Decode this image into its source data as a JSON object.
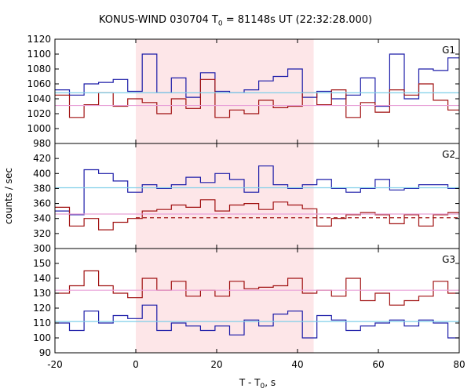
{
  "chart_data": {
    "type": "line",
    "title_main": "KONUS-WIND 030704 T",
    "title_sub": "0",
    "title_rest": " = 81148s UT (22:32:28.000)",
    "xlabel_main": "T - T",
    "xlabel_sub": "0",
    "xlabel_rest": ", s",
    "ylabel": "counts / sec",
    "xlim": [
      -20,
      80
    ],
    "xticks": [
      "-20",
      "0",
      "20",
      "40",
      "60",
      "80"
    ],
    "highlight_range": [
      0,
      44
    ],
    "colors": {
      "blue": "#1c1ca8",
      "red": "#a01010",
      "cyan": "#7fcfe8",
      "pink": "#e8a0d8",
      "shade": "#fde6e8"
    },
    "bins": [
      -20,
      -16.4,
      -12.8,
      -9.2,
      -5.6,
      -2,
      1.6,
      5.2,
      8.8,
      12.4,
      16,
      19.6,
      23.2,
      26.8,
      30.4,
      34,
      37.6,
      41.2,
      44.8,
      48.4,
      52,
      55.6,
      59.2,
      62.8,
      66.4,
      70,
      73.6,
      77.2,
      80
    ],
    "panels": [
      {
        "label": "G1",
        "ylim": [
          980,
          1120
        ],
        "yticks": [
          "980",
          "1000",
          "1020",
          "1040",
          "1060",
          "1080",
          "1100",
          "1120"
        ],
        "series": [
          {
            "color": "blue",
            "values": [
              1052,
              1045,
              1060,
              1062,
              1066,
              1050,
              1100,
              1048,
              1068,
              1042,
              1075,
              1050,
              1048,
              1052,
              1064,
              1070,
              1080,
              1042,
              1050,
              1040,
              1045,
              1068,
              1030,
              1100,
              1040,
              1080,
              1078,
              1095
            ]
          },
          {
            "color": "red",
            "values": [
              1045,
              1015,
              1032,
              1048,
              1030,
              1040,
              1035,
              1020,
              1040,
              1027,
              1066,
              1015,
              1025,
              1020,
              1038,
              1028,
              1030,
              1048,
              1032,
              1052,
              1015,
              1035,
              1022,
              1052,
              1045,
              1060,
              1038,
              1025
            ]
          },
          {
            "color": "cyan",
            "values": [
              1048
            ],
            "flat": true
          },
          {
            "color": "pink",
            "values": [
              1031
            ],
            "flat": true
          }
        ]
      },
      {
        "label": "G2",
        "ylim": [
          300,
          440
        ],
        "yticks": [
          "300",
          "320",
          "340",
          "360",
          "380",
          "400",
          "420"
        ],
        "series": [
          {
            "color": "blue",
            "values": [
              350,
              345,
              405,
              400,
              390,
              375,
              385,
              380,
              385,
              395,
              388,
              400,
              392,
              375,
              410,
              385,
              380,
              385,
              392,
              380,
              375,
              380,
              392,
              378,
              380,
              385,
              385,
              380
            ]
          },
          {
            "color": "red",
            "values": [
              355,
              330,
              340,
              325,
              335,
              340,
              350,
              352,
              358,
              355,
              365,
              350,
              358,
              360,
              352,
              362,
              358,
              353,
              330,
              340,
              345,
              348,
              345,
              333,
              345,
              330,
              345,
              348
            ]
          },
          {
            "color": "cyan",
            "values": [
              381
            ],
            "flat": true
          },
          {
            "color": "pink",
            "values": [
              346
            ],
            "flat": true
          },
          {
            "color": "red",
            "values": [
              341
            ],
            "flat": true,
            "dashed": true,
            "range": [
              0,
              80
            ]
          }
        ]
      },
      {
        "label": "G3",
        "ylim": [
          90,
          160
        ],
        "yticks": [
          "90",
          "100",
          "110",
          "120",
          "130",
          "140",
          "150"
        ],
        "series": [
          {
            "color": "blue",
            "values": [
              110,
              105,
              118,
              110,
              115,
              113,
              122,
              105,
              110,
              108,
              105,
              108,
              102,
              112,
              108,
              116,
              118,
              100,
              115,
              112,
              105,
              108,
              110,
              112,
              108,
              112,
              110,
              100
            ]
          },
          {
            "color": "red",
            "values": [
              130,
              135,
              145,
              135,
              130,
              127,
              140,
              132,
              138,
              128,
              132,
              128,
              138,
              133,
              134,
              135,
              140,
              130,
              132,
              128,
              140,
              125,
              130,
              122,
              125,
              128,
              138,
              130
            ]
          },
          {
            "color": "cyan",
            "values": [
              111
            ],
            "flat": true
          },
          {
            "color": "pink",
            "values": [
              132
            ],
            "flat": true
          }
        ]
      }
    ]
  }
}
